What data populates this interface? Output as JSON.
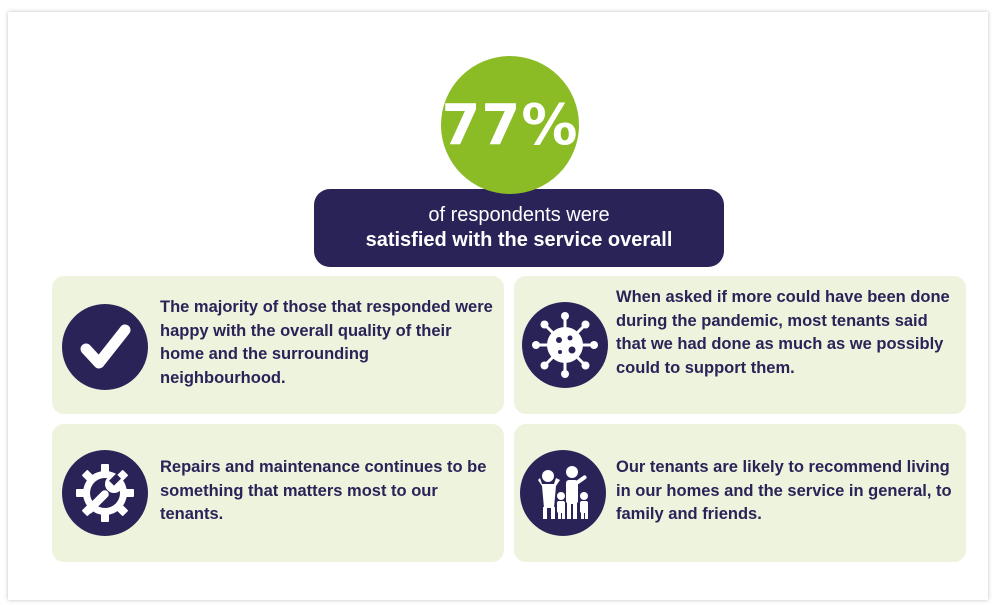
{
  "headline": {
    "value": "77%",
    "line1": "of respondents were",
    "line2": "satisfied with the service overall"
  },
  "colors": {
    "navy": "#2a2358",
    "green": "#8cbc25",
    "card_bg": "#eef3dd"
  },
  "cards": [
    {
      "icon": "checkmark-icon",
      "text": "The majority of those that responded were happy with the overall quality of their home and the surrounding neighbourhood."
    },
    {
      "icon": "virus-icon",
      "text": "When asked if more could have been done during the pandemic, most tenants said that we had done as much as we possibly could to support them."
    },
    {
      "icon": "gear-wrench-icon",
      "text": "Repairs and maintenance continues to be something that matters most to our tenants."
    },
    {
      "icon": "family-icon",
      "text": "Our tenants are likely to recommend living in our homes and the service in general, to family and friends."
    }
  ]
}
